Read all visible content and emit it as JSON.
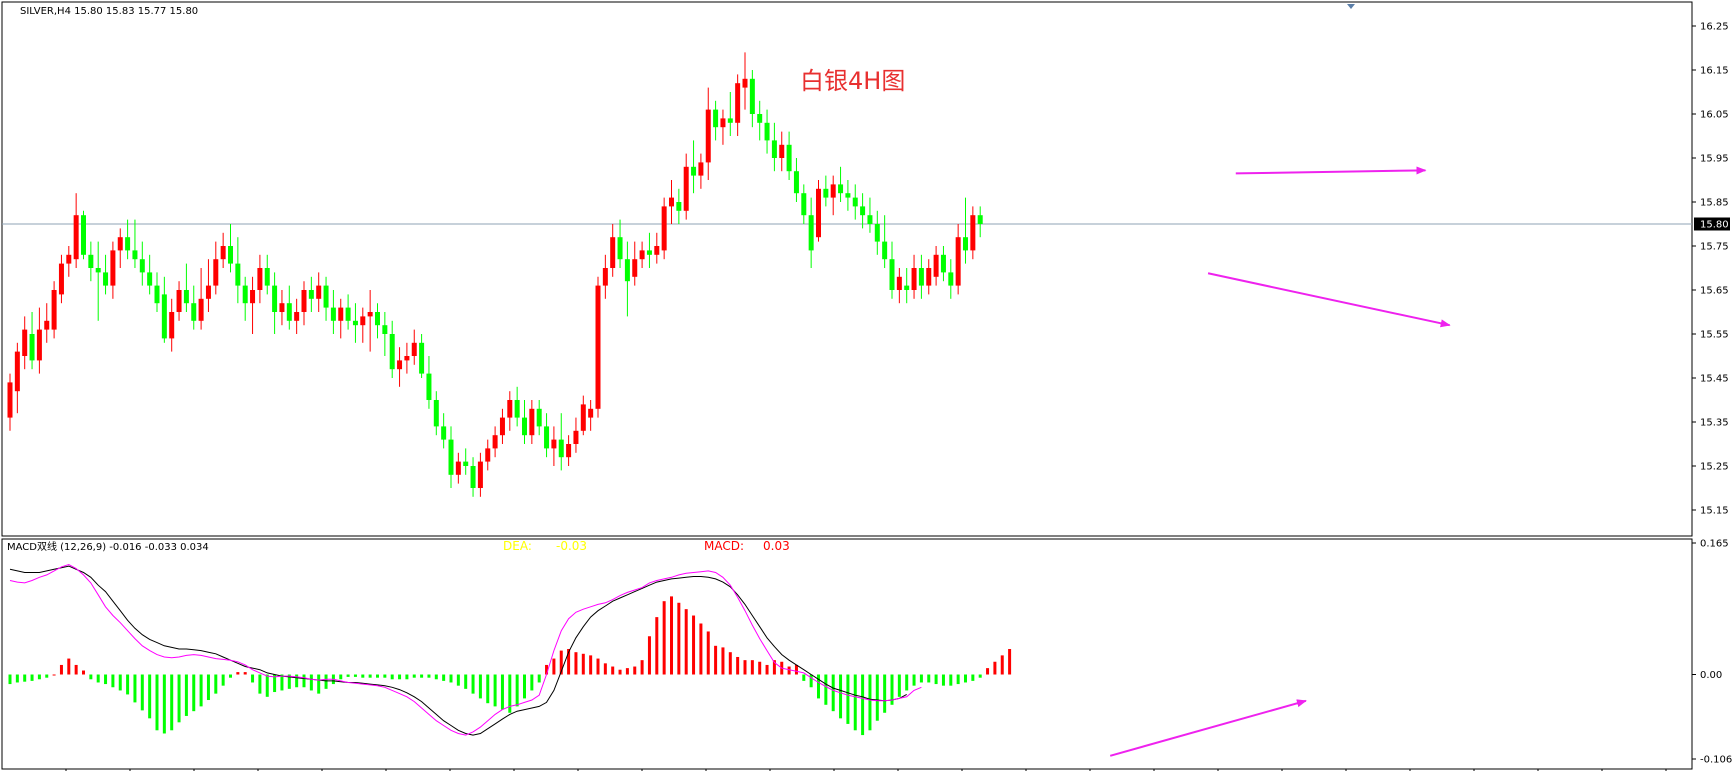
{
  "header": {
    "symbol_info": "SILVER,H4  15.80 15.83 15.77 15.80",
    "annotation_title": "白银4H图"
  },
  "indicator": {
    "title": "MACD双线 (12,26,9) -0.016 -0.033 0.034",
    "dea_label": "DEA:",
    "dea_value": "-0.03",
    "macd_label": "MACD:",
    "macd_value": "0.03"
  },
  "colors": {
    "bull": "#ff0000",
    "bear": "#00ff00",
    "fast_line": "#ff00ff",
    "slow_line": "#000000",
    "arrow": "#ee22ee",
    "price_line": "#8fa3b5",
    "dea_text": "#ffff00",
    "macd_text": "#ff0000",
    "title_text": "#e83030"
  },
  "chart_data": [
    {
      "type": "candlestick",
      "ylim": [
        15.1,
        16.3
      ],
      "price_ticks": [
        "16.25",
        "16.15",
        "16.05",
        "15.95",
        "15.85",
        "15.75",
        "15.65",
        "15.55",
        "15.45",
        "15.35",
        "15.25",
        "15.15"
      ],
      "current_price": "15.80",
      "candles": [
        [
          15.36,
          15.46,
          15.33,
          15.44
        ],
        [
          15.42,
          15.53,
          15.37,
          15.51
        ],
        [
          15.5,
          15.59,
          15.47,
          15.56
        ],
        [
          15.55,
          15.6,
          15.47,
          15.49
        ],
        [
          15.49,
          15.61,
          15.46,
          15.56
        ],
        [
          15.56,
          15.62,
          15.53,
          15.58
        ],
        [
          15.56,
          15.67,
          15.54,
          15.65
        ],
        [
          15.64,
          15.73,
          15.62,
          15.71
        ],
        [
          15.71,
          15.75,
          15.68,
          15.73
        ],
        [
          15.72,
          15.87,
          15.7,
          15.82
        ],
        [
          15.82,
          15.83,
          15.72,
          15.73
        ],
        [
          15.73,
          15.76,
          15.67,
          15.7
        ],
        [
          15.7,
          15.76,
          15.58,
          15.69
        ],
        [
          15.69,
          15.73,
          15.64,
          15.66
        ],
        [
          15.66,
          15.76,
          15.63,
          15.74
        ],
        [
          15.74,
          15.79,
          15.7,
          15.77
        ],
        [
          15.77,
          15.81,
          15.72,
          15.74
        ],
        [
          15.74,
          15.81,
          15.7,
          15.72
        ],
        [
          15.72,
          15.76,
          15.66,
          15.69
        ],
        [
          15.69,
          15.73,
          15.64,
          15.66
        ],
        [
          15.66,
          15.69,
          15.6,
          15.62
        ],
        [
          15.64,
          15.68,
          15.53,
          15.54
        ],
        [
          15.54,
          15.63,
          15.51,
          15.6
        ],
        [
          15.6,
          15.67,
          15.58,
          15.65
        ],
        [
          15.65,
          15.71,
          15.6,
          15.62
        ],
        [
          15.62,
          15.66,
          15.56,
          15.58
        ],
        [
          15.58,
          15.7,
          15.56,
          15.63
        ],
        [
          15.63,
          15.72,
          15.6,
          15.66
        ],
        [
          15.66,
          15.76,
          15.64,
          15.72
        ],
        [
          15.72,
          15.78,
          15.7,
          15.75
        ],
        [
          15.75,
          15.8,
          15.69,
          15.71
        ],
        [
          15.71,
          15.77,
          15.62,
          15.66
        ],
        [
          15.66,
          15.68,
          15.58,
          15.62
        ],
        [
          15.62,
          15.68,
          15.55,
          15.65
        ],
        [
          15.65,
          15.73,
          15.62,
          15.7
        ],
        [
          15.7,
          15.73,
          15.64,
          15.66
        ],
        [
          15.66,
          15.69,
          15.55,
          15.6
        ],
        [
          15.6,
          15.65,
          15.57,
          15.62
        ],
        [
          15.62,
          15.66,
          15.56,
          15.58
        ],
        [
          15.58,
          15.63,
          15.55,
          15.6
        ],
        [
          15.6,
          15.67,
          15.57,
          15.65
        ],
        [
          15.65,
          15.68,
          15.6,
          15.63
        ],
        [
          15.63,
          15.69,
          15.6,
          15.66
        ],
        [
          15.66,
          15.68,
          15.58,
          15.61
        ],
        [
          15.61,
          15.65,
          15.55,
          15.58
        ],
        [
          15.58,
          15.63,
          15.54,
          15.61
        ],
        [
          15.61,
          15.64,
          15.56,
          15.58
        ],
        [
          15.58,
          15.62,
          15.53,
          15.57
        ],
        [
          15.57,
          15.61,
          15.53,
          15.59
        ],
        [
          15.59,
          15.65,
          15.51,
          15.6
        ],
        [
          15.6,
          15.62,
          15.54,
          15.57
        ],
        [
          15.57,
          15.6,
          15.5,
          15.55
        ],
        [
          15.55,
          15.58,
          15.45,
          15.47
        ],
        [
          15.47,
          15.52,
          15.43,
          15.49
        ],
        [
          15.49,
          15.53,
          15.46,
          15.5
        ],
        [
          15.5,
          15.56,
          15.48,
          15.53
        ],
        [
          15.53,
          15.55,
          15.45,
          15.46
        ],
        [
          15.46,
          15.5,
          15.38,
          15.4
        ],
        [
          15.4,
          15.42,
          15.32,
          15.34
        ],
        [
          15.34,
          15.37,
          15.29,
          15.31
        ],
        [
          15.31,
          15.34,
          15.2,
          15.23
        ],
        [
          15.23,
          15.28,
          15.21,
          15.26
        ],
        [
          15.26,
          15.29,
          15.23,
          15.25
        ],
        [
          15.25,
          15.27,
          15.18,
          15.2
        ],
        [
          15.2,
          15.28,
          15.18,
          15.26
        ],
        [
          15.26,
          15.31,
          15.24,
          15.29
        ],
        [
          15.29,
          15.34,
          15.27,
          15.32
        ],
        [
          15.32,
          15.38,
          15.3,
          15.36
        ],
        [
          15.36,
          15.42,
          15.33,
          15.4
        ],
        [
          15.4,
          15.43,
          15.34,
          15.36
        ],
        [
          15.36,
          15.4,
          15.3,
          15.32
        ],
        [
          15.32,
          15.4,
          15.3,
          15.38
        ],
        [
          15.38,
          15.4,
          15.32,
          15.34
        ],
        [
          15.34,
          15.37,
          15.27,
          15.29
        ],
        [
          15.29,
          15.34,
          15.25,
          15.31
        ],
        [
          15.31,
          15.37,
          15.24,
          15.27
        ],
        [
          15.27,
          15.32,
          15.25,
          15.3
        ],
        [
          15.3,
          15.36,
          15.28,
          15.33
        ],
        [
          15.33,
          15.41,
          15.32,
          15.39
        ],
        [
          15.36,
          15.4,
          15.33,
          15.38
        ],
        [
          15.38,
          15.68,
          15.36,
          15.66
        ],
        [
          15.66,
          15.73,
          15.63,
          15.7
        ],
        [
          15.7,
          15.8,
          15.68,
          15.77
        ],
        [
          15.77,
          15.81,
          15.7,
          15.72
        ],
        [
          15.72,
          15.76,
          15.59,
          15.67
        ],
        [
          15.68,
          15.76,
          15.66,
          15.72
        ],
        [
          15.72,
          15.76,
          15.7,
          15.74
        ],
        [
          15.74,
          15.78,
          15.7,
          15.73
        ],
        [
          15.73,
          15.78,
          15.71,
          15.75
        ],
        [
          15.74,
          15.86,
          15.72,
          15.84
        ],
        [
          15.84,
          15.9,
          15.8,
          15.86
        ],
        [
          15.85,
          15.88,
          15.8,
          15.83
        ],
        [
          15.83,
          15.96,
          15.81,
          15.93
        ],
        [
          15.93,
          15.99,
          15.87,
          15.91
        ],
        [
          15.91,
          15.96,
          15.88,
          15.94
        ],
        [
          15.94,
          16.11,
          15.9,
          16.06
        ],
        [
          16.06,
          16.08,
          15.99,
          16.02
        ],
        [
          16.02,
          16.06,
          15.98,
          16.04
        ],
        [
          16.04,
          16.1,
          16.0,
          16.03
        ],
        [
          16.03,
          16.14,
          16.0,
          16.12
        ],
        [
          16.11,
          16.19,
          16.06,
          16.13
        ],
        [
          16.13,
          16.15,
          16.02,
          16.05
        ],
        [
          16.05,
          16.08,
          15.99,
          16.03
        ],
        [
          16.03,
          16.06,
          15.96,
          15.99
        ],
        [
          15.99,
          16.03,
          15.92,
          15.95
        ],
        [
          15.95,
          16.01,
          15.92,
          15.98
        ],
        [
          15.98,
          16.01,
          15.9,
          15.92
        ],
        [
          15.92,
          15.95,
          15.85,
          15.87
        ],
        [
          15.87,
          15.89,
          15.8,
          15.82
        ],
        [
          15.82,
          15.86,
          15.7,
          15.74
        ],
        [
          15.77,
          15.9,
          15.76,
          15.88
        ],
        [
          15.88,
          15.91,
          15.84,
          15.86
        ],
        [
          15.86,
          15.91,
          15.82,
          15.89
        ],
        [
          15.89,
          15.93,
          15.85,
          15.87
        ],
        [
          15.87,
          15.9,
          15.83,
          15.86
        ],
        [
          15.86,
          15.89,
          15.81,
          15.84
        ],
        [
          15.84,
          15.87,
          15.79,
          15.82
        ],
        [
          15.82,
          15.86,
          15.78,
          15.8
        ],
        [
          15.8,
          15.83,
          15.73,
          15.76
        ],
        [
          15.76,
          15.82,
          15.7,
          15.72
        ],
        [
          15.72,
          15.76,
          15.63,
          15.65
        ],
        [
          15.65,
          15.7,
          15.62,
          15.68
        ],
        [
          15.66,
          15.7,
          15.62,
          15.65
        ],
        [
          15.65,
          15.73,
          15.63,
          15.7
        ],
        [
          15.7,
          15.73,
          15.63,
          15.66
        ],
        [
          15.66,
          15.72,
          15.64,
          15.7
        ],
        [
          15.68,
          15.75,
          15.66,
          15.73
        ],
        [
          15.73,
          15.75,
          15.67,
          15.69
        ],
        [
          15.69,
          15.72,
          15.63,
          15.66
        ],
        [
          15.66,
          15.8,
          15.64,
          15.77
        ],
        [
          15.77,
          15.86,
          15.71,
          15.74
        ],
        [
          15.74,
          15.84,
          15.72,
          15.82
        ],
        [
          15.82,
          15.84,
          15.77,
          15.8
        ]
      ],
      "trendlines": [
        {
          "x1": 0.7135,
          "y1": 15.915,
          "x2": 0.823,
          "y2": 15.922
        },
        {
          "x1": 0.6975,
          "y1": 15.688,
          "x2": 0.837,
          "y2": 15.57
        }
      ]
    },
    {
      "type": "macd",
      "ylim": [
        -0.106,
        0.165
      ],
      "y_ticks": [
        "0.165",
        "0.00",
        "-0.106"
      ],
      "histogram": [
        -0.012,
        -0.01,
        -0.009,
        -0.008,
        -0.006,
        -0.004,
        0.0,
        0.012,
        0.02,
        0.012,
        0.005,
        -0.006,
        -0.01,
        -0.012,
        -0.016,
        -0.02,
        -0.025,
        -0.035,
        -0.045,
        -0.055,
        -0.07,
        -0.074,
        -0.07,
        -0.06,
        -0.052,
        -0.046,
        -0.04,
        -0.032,
        -0.024,
        -0.014,
        -0.004,
        0.003,
        0.003,
        -0.01,
        -0.024,
        -0.028,
        -0.022,
        -0.02,
        -0.018,
        -0.016,
        -0.016,
        -0.02,
        -0.024,
        -0.018,
        -0.012,
        -0.006,
        -0.003,
        -0.003,
        -0.004,
        -0.004,
        -0.004,
        -0.004,
        -0.006,
        -0.006,
        -0.006,
        -0.004,
        -0.004,
        -0.004,
        -0.006,
        -0.008,
        -0.01,
        -0.014,
        -0.018,
        -0.024,
        -0.03,
        -0.036,
        -0.04,
        -0.044,
        -0.048,
        -0.04,
        -0.03,
        -0.02,
        -0.01,
        0.012,
        0.02,
        0.03,
        0.032,
        0.028,
        0.026,
        0.024,
        0.02,
        0.014,
        0.01,
        0.006,
        0.008,
        0.01,
        0.018,
        0.048,
        0.072,
        0.092,
        0.098,
        0.09,
        0.082,
        0.074,
        0.064,
        0.054,
        0.036,
        0.034,
        0.028,
        0.022,
        0.018,
        0.018,
        0.016,
        0.012,
        0.018,
        0.016,
        0.01,
        0.012,
        -0.008,
        -0.016,
        -0.03,
        -0.038,
        -0.046,
        -0.055,
        -0.062,
        -0.07,
        -0.076,
        -0.07,
        -0.058,
        -0.048,
        -0.038,
        -0.028,
        -0.02,
        -0.014,
        -0.01,
        -0.01,
        -0.012,
        -0.014,
        -0.014,
        -0.012,
        -0.01,
        -0.008,
        -0.004,
        0.008,
        0.016,
        0.024,
        0.032
      ],
      "fast": [
        0.118,
        0.116,
        0.115,
        0.118,
        0.122,
        0.125,
        0.13,
        0.135,
        0.138,
        0.133,
        0.125,
        0.115,
        0.1,
        0.085,
        0.074,
        0.065,
        0.055,
        0.045,
        0.036,
        0.03,
        0.025,
        0.022,
        0.021,
        0.022,
        0.024,
        0.025,
        0.024,
        0.022,
        0.02,
        0.019,
        0.018,
        0.016,
        0.012,
        0.006,
        0.002,
        -0.002,
        -0.003,
        -0.002,
        -0.002,
        -0.003,
        -0.004,
        -0.006,
        -0.007,
        -0.006,
        -0.006,
        -0.008,
        -0.01,
        -0.011,
        -0.012,
        -0.013,
        -0.014,
        -0.016,
        -0.02,
        -0.024,
        -0.028,
        -0.034,
        -0.042,
        -0.05,
        -0.058,
        -0.064,
        -0.07,
        -0.074,
        -0.076,
        -0.072,
        -0.066,
        -0.058,
        -0.05,
        -0.044,
        -0.04,
        -0.038,
        -0.035,
        -0.032,
        -0.026,
        0.0,
        0.03,
        0.055,
        0.07,
        0.078,
        0.082,
        0.085,
        0.088,
        0.09,
        0.094,
        0.099,
        0.103,
        0.106,
        0.109,
        0.115,
        0.118,
        0.12,
        0.122,
        0.125,
        0.127,
        0.128,
        0.129,
        0.13,
        0.128,
        0.122,
        0.112,
        0.097,
        0.08,
        0.062,
        0.045,
        0.03,
        0.015,
        0.008,
        0.006,
        0.004,
        0.002,
        -0.004,
        -0.01,
        -0.015,
        -0.02,
        -0.023,
        -0.026,
        -0.028,
        -0.03,
        -0.032,
        -0.033,
        -0.033,
        -0.032,
        -0.03,
        -0.028,
        -0.02,
        -0.016
      ],
      "slow": [
        0.132,
        0.13,
        0.128,
        0.128,
        0.128,
        0.13,
        0.132,
        0.134,
        0.136,
        0.132,
        0.128,
        0.122,
        0.112,
        0.104,
        0.092,
        0.08,
        0.068,
        0.058,
        0.05,
        0.044,
        0.04,
        0.036,
        0.034,
        0.032,
        0.032,
        0.031,
        0.03,
        0.028,
        0.026,
        0.022,
        0.018,
        0.014,
        0.01,
        0.008,
        0.006,
        0.002,
        0.0,
        -0.002,
        -0.003,
        -0.004,
        -0.005,
        -0.006,
        -0.007,
        -0.008,
        -0.008,
        -0.009,
        -0.01,
        -0.01,
        -0.011,
        -0.012,
        -0.013,
        -0.014,
        -0.016,
        -0.019,
        -0.023,
        -0.028,
        -0.034,
        -0.042,
        -0.05,
        -0.058,
        -0.064,
        -0.07,
        -0.074,
        -0.076,
        -0.074,
        -0.068,
        -0.062,
        -0.056,
        -0.05,
        -0.046,
        -0.044,
        -0.042,
        -0.04,
        -0.035,
        -0.02,
        0.004,
        0.028,
        0.046,
        0.06,
        0.072,
        0.08,
        0.086,
        0.092,
        0.096,
        0.1,
        0.104,
        0.108,
        0.112,
        0.116,
        0.118,
        0.12,
        0.121,
        0.122,
        0.123,
        0.123,
        0.122,
        0.12,
        0.116,
        0.11,
        0.1,
        0.088,
        0.074,
        0.06,
        0.046,
        0.035,
        0.025,
        0.018,
        0.012,
        0.006,
        0.0,
        -0.006,
        -0.012,
        -0.017,
        -0.02,
        -0.023,
        -0.026,
        -0.028,
        -0.031,
        -0.032,
        -0.033,
        -0.032,
        -0.03,
        -0.025
      ],
      "arrow": {
        "x1": 0.641,
        "y1": -0.102,
        "x2": 0.754,
        "y2": -0.033
      }
    }
  ]
}
